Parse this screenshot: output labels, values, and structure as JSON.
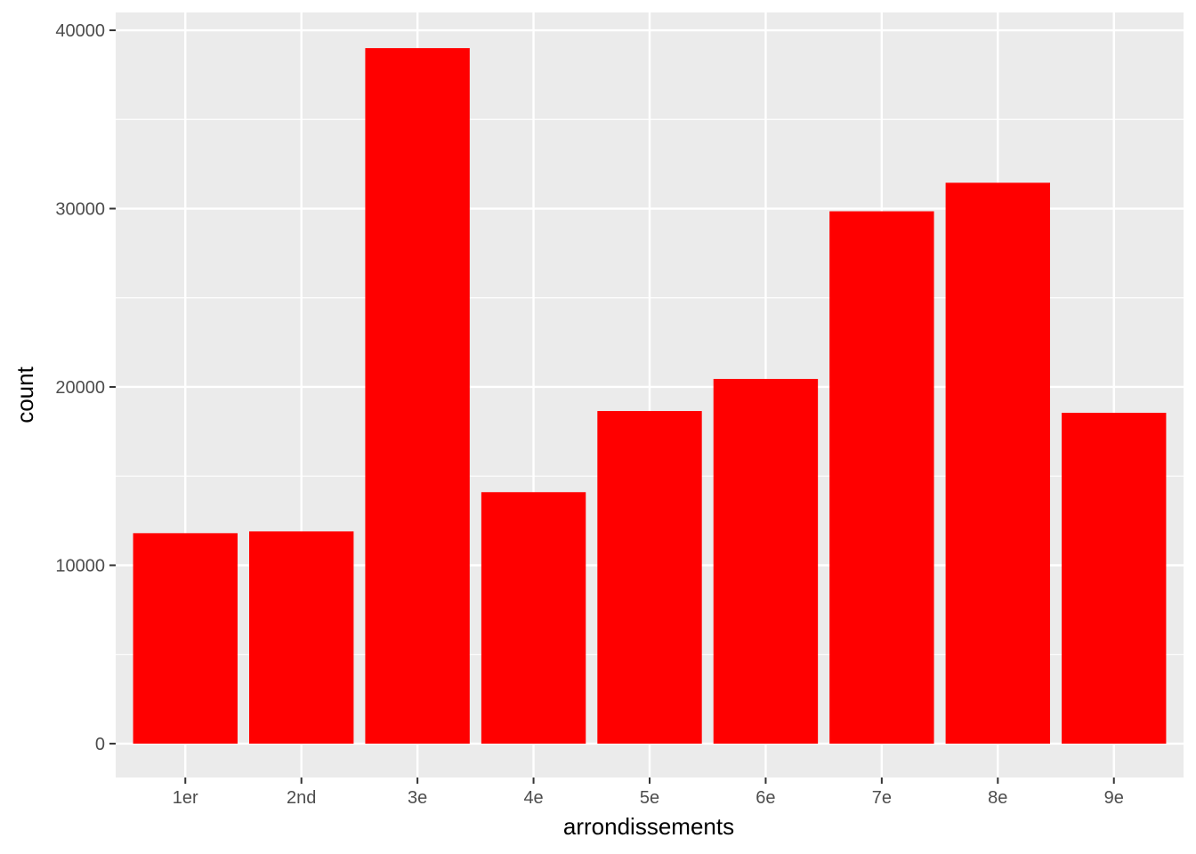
{
  "chart_data": {
    "type": "bar",
    "xlabel": "arrondissements",
    "ylabel": "count",
    "categories": [
      "1er",
      "2nd",
      "3e",
      "4e",
      "5e",
      "6e",
      "7e",
      "8e",
      "9e"
    ],
    "values": [
      11800,
      11900,
      39000,
      14100,
      18650,
      20450,
      29850,
      31450,
      18550
    ],
    "ylim": [
      -1900,
      41000
    ],
    "yticks": [
      0,
      10000,
      20000,
      30000,
      40000
    ],
    "ytick_labels": [
      "0",
      "10000",
      "20000",
      "30000",
      "40000"
    ],
    "grid": true,
    "legend": "none",
    "colors": {
      "bar": "#ff0000",
      "panel": "#ebebeb",
      "grid": "#ffffff",
      "tick_text": "#4d4d4d",
      "title_text": "#000000"
    }
  }
}
